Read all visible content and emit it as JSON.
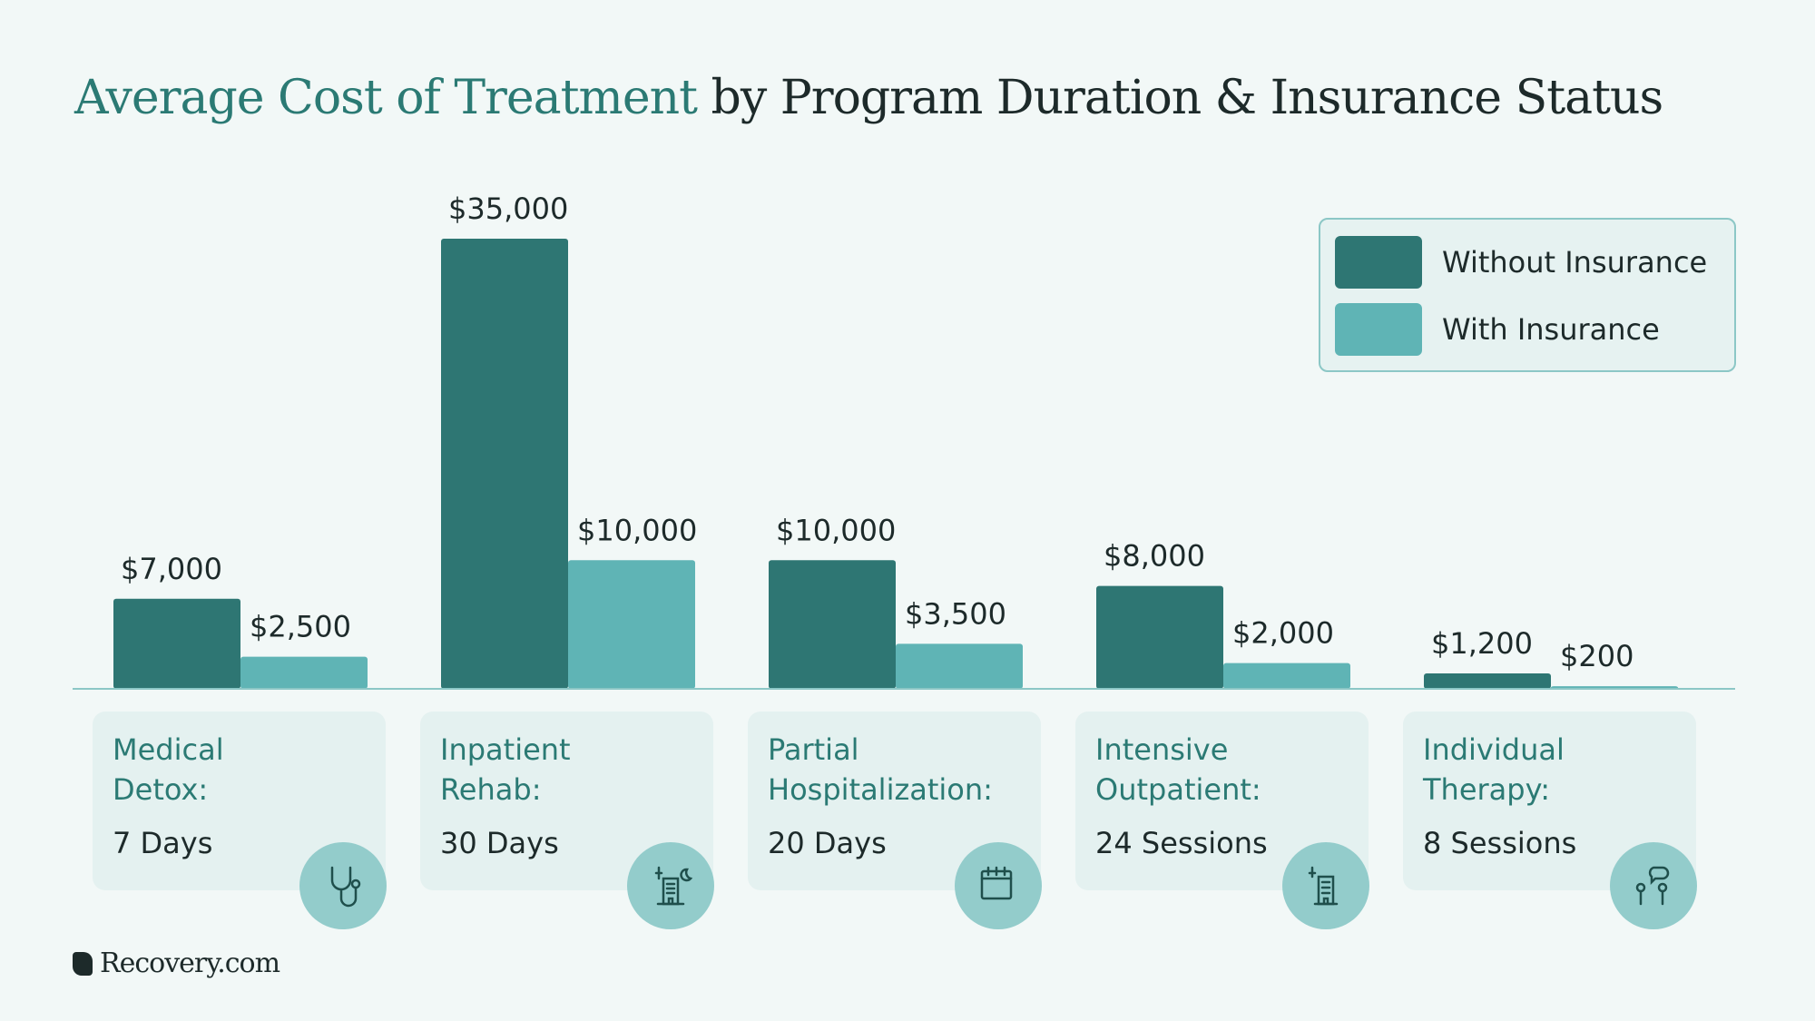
{
  "title": {
    "highlight": "Average Cost of Treatment",
    "rest": " by Program Duration & Insurance Status"
  },
  "chart_data": {
    "type": "bar",
    "categories": [
      "Medical Detox",
      "Inpatient Rehab",
      "Partial Hospitalization",
      "Intensive Outpatient",
      "Individual Therapy"
    ],
    "series": [
      {
        "name": "Without Insurance",
        "color": "#2e7673",
        "values": [
          7000,
          35000,
          10000,
          8000,
          1200
        ],
        "labels": [
          "$7,000",
          "$35,000",
          "$10,000",
          "$8,000",
          "$1,200"
        ]
      },
      {
        "name": "With Insurance",
        "color": "#5fb4b5",
        "values": [
          2500,
          10000,
          3500,
          2000,
          200
        ],
        "labels": [
          "$2,500",
          "$10,000",
          "$3,500",
          "$2,000",
          "$200"
        ]
      }
    ],
    "ylim": [
      0,
      35000
    ],
    "grid": false,
    "legend": "top-right"
  },
  "cards": [
    {
      "name": "Medical Detox:",
      "duration": "7 Days",
      "icon": "stethoscope-icon"
    },
    {
      "name": "Inpatient Rehab:",
      "duration": "30 Days",
      "icon": "building-sun-moon-icon"
    },
    {
      "name": "Partial Hospitalization:",
      "duration": "20 Days",
      "icon": "calendar-icon"
    },
    {
      "name": "Intensive Outpatient:",
      "duration": "24 Sessions",
      "icon": "building-sun-icon"
    },
    {
      "name": "Individual Therapy:",
      "duration": "8 Sessions",
      "icon": "people-talking-icon"
    }
  ],
  "brand": "Recovery.com"
}
